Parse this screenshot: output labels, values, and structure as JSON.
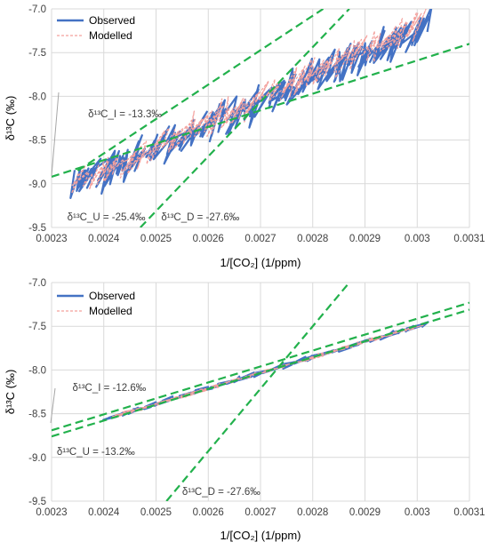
{
  "colors": {
    "observed": "#4472C4",
    "modelled": "#F4A09C",
    "fit": "#22B14C",
    "grid": "#D9D9D9",
    "axis_text": "#404040",
    "annotation": "#404040",
    "leader": "#A6A6A6"
  },
  "chart_data": [
    {
      "type": "line",
      "xlabel": "1/[CO₂] (1/ppm)",
      "ylabel": "δ¹³C (‰)",
      "xlim": [
        0.0023,
        0.0031
      ],
      "ylim": [
        -9.5,
        -7.0
      ],
      "xticks": [
        0.0023,
        0.0024,
        0.0025,
        0.0026,
        0.0027,
        0.0028,
        0.0029,
        0.003,
        0.0031
      ],
      "xtick_labels": [
        "0.0023",
        "0.0024",
        "0.0025",
        "0.0026",
        "0.0027",
        "0.0028",
        "0.0029",
        "0.003",
        "0.0031"
      ],
      "yticks": [
        -9.5,
        -9.0,
        -8.5,
        -8.0,
        -7.5,
        -7.0
      ],
      "ytick_labels": [
        "-9.5",
        "-9.0",
        "-8.5",
        "-8.0",
        "-7.5",
        "-7.0"
      ],
      "grid": true,
      "legend": {
        "position": "top-left",
        "entries": [
          "Observed",
          "Modelled"
        ]
      },
      "series": [
        {
          "name": "Observed",
          "style": "solid",
          "spread": 0.42,
          "amp": 0.25,
          "points": 230,
          "pts_range": [
            [
              0.00235,
              -9.02
            ],
            [
              0.00303,
              -7.2
            ]
          ]
        },
        {
          "name": "Modelled",
          "style": "dashed",
          "spread": 0.36,
          "amp": 0.21,
          "points": 230,
          "pts_range": [
            [
              0.00236,
              -9.0
            ],
            [
              0.00302,
              -7.15
            ]
          ]
        }
      ],
      "fit_lines": [
        {
          "id": "I",
          "x": [
            0.0023,
            0.0031
          ],
          "y": [
            -8.92,
            -7.4
          ]
        },
        {
          "id": "U",
          "x": [
            0.00235,
            0.00282
          ],
          "y": [
            -8.85,
            -7.0
          ]
        },
        {
          "id": "D",
          "x": [
            0.00247,
            0.00287
          ],
          "y": [
            -9.5,
            -7.0
          ]
        }
      ],
      "annotations": [
        {
          "text": "δ¹³C_I = -13.3‰",
          "x": 0.00237,
          "y": -8.2
        },
        {
          "text": "δ¹³C_U = -25.4‰",
          "x": 0.00233,
          "y": -9.38
        },
        {
          "text": "δ¹³C_D = -27.6‰",
          "x": 0.00251,
          "y": -9.38
        }
      ]
    },
    {
      "type": "line",
      "xlabel": "1/[CO₂] (1/ppm)",
      "ylabel": "δ¹³C (‰)",
      "xlim": [
        0.0023,
        0.0031
      ],
      "ylim": [
        -9.5,
        -7.0
      ],
      "xticks": [
        0.0023,
        0.0024,
        0.0025,
        0.0026,
        0.0027,
        0.0028,
        0.0029,
        0.003,
        0.0031
      ],
      "xtick_labels": [
        "0.0023",
        "0.0024",
        "0.0025",
        "0.0026",
        "0.0027",
        "0.0028",
        "0.0029",
        "0.003",
        "0.0031"
      ],
      "yticks": [
        -9.5,
        -9.0,
        -8.5,
        -8.0,
        -7.5,
        -7.0
      ],
      "ytick_labels": [
        "-9.5",
        "-9.0",
        "-8.5",
        "-8.0",
        "-7.5",
        "-7.0"
      ],
      "grid": true,
      "legend": {
        "position": "top-left",
        "entries": [
          "Observed",
          "Modelled"
        ]
      },
      "series": [
        {
          "name": "Observed",
          "style": "solid",
          "spread": 0.04,
          "amp": 0.04,
          "points": 200,
          "pts_range": [
            [
              0.00242,
              -8.55
            ],
            [
              0.00302,
              -7.48
            ]
          ]
        },
        {
          "name": "Modelled",
          "style": "dashed",
          "spread": 0.03,
          "amp": 0.03,
          "points": 200,
          "pts_range": [
            [
              0.00243,
              -8.53
            ],
            [
              0.00301,
              -7.5
            ]
          ]
        }
      ],
      "fit_lines": [
        {
          "id": "I",
          "x": [
            0.0023,
            0.0031
          ],
          "y": [
            -8.69,
            -7.23
          ]
        },
        {
          "id": "U",
          "x": [
            0.0023,
            0.0031
          ],
          "y": [
            -8.76,
            -7.31
          ]
        },
        {
          "id": "D",
          "x": [
            0.00252,
            0.00287
          ],
          "y": [
            -9.5,
            -7.0
          ]
        }
      ],
      "annotations": [
        {
          "text": "δ¹³C_I = -12.6‰",
          "x": 0.00234,
          "y": -8.2
        },
        {
          "text": "δ¹³C_U = -13.2‰",
          "x": 0.00231,
          "y": -8.93
        },
        {
          "text": "δ¹³C_D = -27.6‰",
          "x": 0.00255,
          "y": -9.39
        }
      ]
    }
  ]
}
